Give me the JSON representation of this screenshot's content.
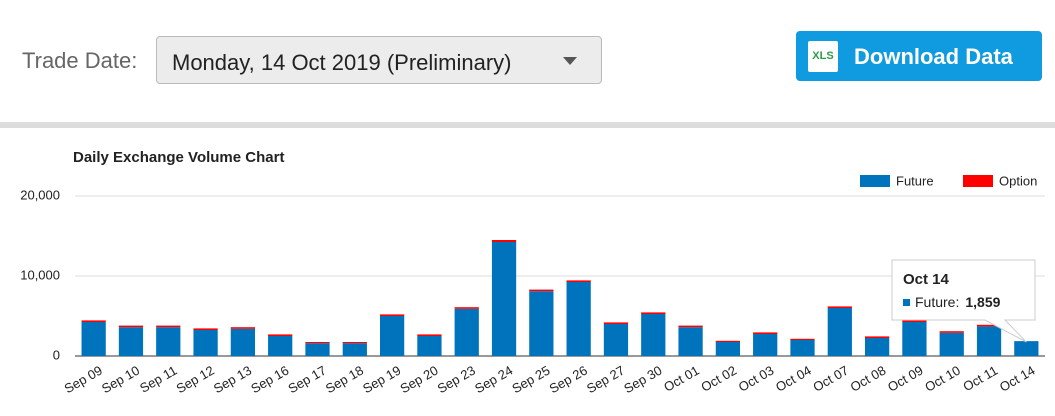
{
  "header": {
    "trade_date_label": "Trade Date:",
    "trade_date_value": "Monday, 14 Oct 2019 (Preliminary)",
    "xls_icon": "XLS",
    "download_button": "Download Data"
  },
  "chart_data": {
    "type": "bar",
    "stacked": true,
    "title": "Daily Exchange Volume Chart",
    "categories": [
      "Sep 09",
      "Sep 10",
      "Sep 11",
      "Sep 12",
      "Sep 13",
      "Sep 16",
      "Sep 17",
      "Sep 18",
      "Sep 19",
      "Sep 20",
      "Sep 23",
      "Sep 24",
      "Sep 25",
      "Sep 26",
      "Sep 27",
      "Sep 30",
      "Oct 01",
      "Oct 02",
      "Oct 03",
      "Oct 04",
      "Oct 07",
      "Oct 08",
      "Oct 09",
      "Oct 10",
      "Oct 11",
      "Oct 14"
    ],
    "series": [
      {
        "name": "Future",
        "color": "#0073bd",
        "values": [
          4250,
          3600,
          3600,
          3250,
          3400,
          2500,
          1600,
          1600,
          5000,
          2500,
          5900,
          14250,
          8100,
          9250,
          4000,
          5250,
          3600,
          1750,
          2750,
          2000,
          6000,
          2250,
          4250,
          2900,
          3700,
          1859
        ]
      },
      {
        "name": "Option",
        "color": "#ff0000",
        "values": [
          200,
          200,
          200,
          200,
          200,
          200,
          150,
          150,
          200,
          200,
          200,
          250,
          200,
          200,
          200,
          200,
          200,
          150,
          200,
          150,
          200,
          200,
          200,
          200,
          200,
          0
        ]
      }
    ],
    "ylim": [
      0,
      20000
    ],
    "yticks": [
      0,
      {
        "value": 10000,
        "label": "10,000"
      },
      {
        "value": 20000,
        "label": "20,000"
      }
    ],
    "grid": true,
    "legend": "top-right",
    "tooltip": {
      "label": "Future:",
      "value_label": "1,859"
    }
  }
}
